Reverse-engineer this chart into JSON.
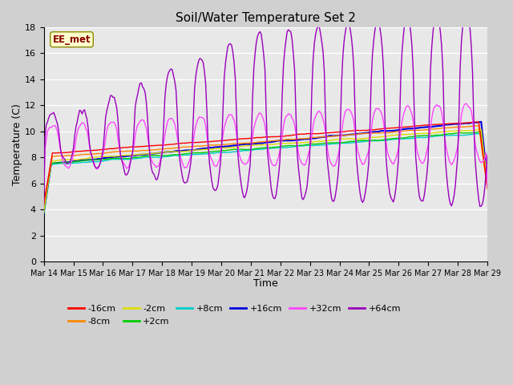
{
  "title": "Soil/Water Temperature Set 2",
  "xlabel": "Time",
  "ylabel": "Temperature (C)",
  "ylim": [
    0,
    18
  ],
  "yticks": [
    0,
    2,
    4,
    6,
    8,
    10,
    12,
    14,
    16,
    18
  ],
  "x_labels": [
    "Mar 14",
    "Mar 15",
    "Mar 16",
    "Mar 17",
    "Mar 18",
    "Mar 19",
    "Mar 20",
    "Mar 21",
    "Mar 22",
    "Mar 23",
    "Mar 24",
    "Mar 25",
    "Mar 26",
    "Mar 27",
    "Mar 28",
    "Mar 29"
  ],
  "series": {
    "-16cm": {
      "color": "#ff0000"
    },
    "-8cm": {
      "color": "#ff8800"
    },
    "-2cm": {
      "color": "#dddd00"
    },
    "+2cm": {
      "color": "#00cc00"
    },
    "+8cm": {
      "color": "#00cccc"
    },
    "+16cm": {
      "color": "#0000dd"
    },
    "+32cm": {
      "color": "#ff44ff"
    },
    "+64cm": {
      "color": "#9900bb"
    }
  },
  "annotation_text": "EE_met",
  "annotation_color": "#880000",
  "annotation_bg": "#ffffcc",
  "fig_bg": "#d0d0d0",
  "plot_bg": "#e8e8e8"
}
